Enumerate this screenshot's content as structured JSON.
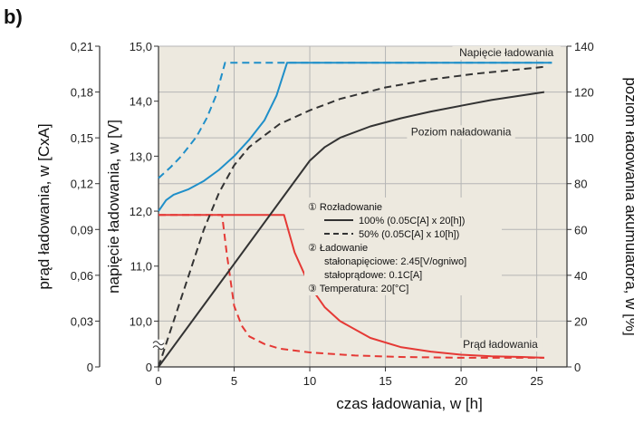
{
  "panel_label": "b)",
  "chart_data": {
    "type": "line",
    "title": "",
    "xlabel": "czas ładowania, w [h]",
    "xlim": [
      0,
      27
    ],
    "xticks": [
      "0",
      "5",
      "10",
      "15",
      "20",
      "25"
    ],
    "axes": {
      "voltage": {
        "label": "napięcie ładowania, w [V]",
        "range": [
          0,
          15
        ],
        "ticks": [
          "0",
          "10,0",
          "11,0",
          "12,0",
          "13,0",
          "14,0",
          "15,0"
        ],
        "broken_below": 10
      },
      "current": {
        "label": "prąd ładowania, w [CxA]",
        "range": [
          0,
          0.21
        ],
        "ticks": [
          "0",
          "0,03",
          "0,06",
          "0,09",
          "0,12",
          "0,15",
          "0,18",
          "0,21"
        ]
      },
      "charge_level": {
        "label": "poziom ładowania akumulatora, w [%]",
        "range": [
          0,
          140
        ],
        "ticks": [
          "0",
          "20",
          "40",
          "60",
          "80",
          "100",
          "120",
          "140"
        ]
      }
    },
    "series": [
      {
        "name": "Napięcie ładowania",
        "axis": "voltage",
        "style": "solid",
        "color": "#1f8fc9",
        "x": [
          0,
          0.5,
          1,
          2,
          3,
          4,
          5,
          6,
          7,
          7.8,
          8.5,
          26
        ],
        "y": [
          12.0,
          12.2,
          12.3,
          12.4,
          12.55,
          12.75,
          13.0,
          13.3,
          13.65,
          14.1,
          14.7,
          14.7
        ]
      },
      {
        "name": "",
        "axis": "voltage",
        "style": "dashed",
        "color": "#1f8fc9",
        "x": [
          0,
          0.8,
          1.5,
          2.5,
          3.2,
          3.8,
          4.2,
          4.4,
          26
        ],
        "y": [
          12.6,
          12.8,
          13.0,
          13.35,
          13.7,
          14.1,
          14.5,
          14.7,
          14.7
        ]
      },
      {
        "name": "",
        "axis": "current",
        "style": "solid",
        "color": "#e53935",
        "x": [
          0,
          8.3,
          9,
          10,
          11,
          12,
          14,
          16,
          18,
          20,
          22,
          24,
          25.5
        ],
        "y": [
          0.0995,
          0.0995,
          0.075,
          0.053,
          0.039,
          0.03,
          0.019,
          0.013,
          0.01,
          0.008,
          0.007,
          0.0065,
          0.006
        ]
      },
      {
        "name": "",
        "axis": "current",
        "style": "dashed",
        "color": "#e53935",
        "x": [
          0,
          4.2,
          4.5,
          5,
          5.5,
          6,
          7,
          8,
          10,
          13,
          16,
          20,
          25.5
        ],
        "y": [
          0.0995,
          0.0995,
          0.075,
          0.04,
          0.027,
          0.02,
          0.015,
          0.012,
          0.0095,
          0.0075,
          0.0065,
          0.006,
          0.006
        ]
      },
      {
        "name": "Poziom naładowania",
        "axis": "charge_level",
        "style": "solid",
        "color": "#333333",
        "x": [
          0,
          2,
          4,
          6,
          8,
          10,
          11,
          12,
          14,
          16,
          18,
          20,
          22,
          24,
          25.5
        ],
        "y": [
          0,
          18,
          36,
          54,
          72,
          90,
          96,
          100,
          105,
          108.5,
          111.5,
          114,
          116.5,
          118.5,
          120
        ]
      },
      {
        "name": "",
        "axis": "charge_level",
        "style": "dashed",
        "color": "#333333",
        "x": [
          0,
          1,
          2,
          3,
          4,
          5,
          6,
          7,
          8,
          10,
          12,
          15,
          18,
          21,
          24,
          25.5
        ],
        "y": [
          0,
          20,
          40,
          60,
          76,
          88,
          96,
          101,
          106,
          112,
          117,
          122,
          125.5,
          128,
          130,
          131
        ]
      }
    ],
    "curve_labels": [
      {
        "text": "Napięcie ładowania",
        "axis": "voltage",
        "x": 23,
        "y": 14.82
      },
      {
        "text": "Poziom naładowania",
        "axis": "voltage",
        "x": 20,
        "y": 13.38
      },
      {
        "text": "Prąd ładowania",
        "axis": "current",
        "x": 22.6,
        "y": 0.0125
      }
    ],
    "legend": {
      "placement": "middle-right",
      "items": [
        {
          "kind": "heading",
          "text": "① Rozładowanie"
        },
        {
          "kind": "line",
          "style": "solid",
          "color": "#333333",
          "text": "100% (0.05C[A] x 20[h])"
        },
        {
          "kind": "line",
          "style": "dashed",
          "color": "#333333",
          "text": "50% (0.05C[A] x 10[h])"
        },
        {
          "kind": "heading",
          "text": "② Ładowanie"
        },
        {
          "kind": "text",
          "text": "stałonapięciowe: 2.45[V/ogniwo]"
        },
        {
          "kind": "text",
          "text": "stałoprądowe: 0.1C[A]"
        },
        {
          "kind": "heading",
          "text": "③ Temperatura: 20[°C]"
        }
      ]
    },
    "grid": true,
    "background": "#ede9df",
    "grid_color": "#b5b5b5"
  }
}
